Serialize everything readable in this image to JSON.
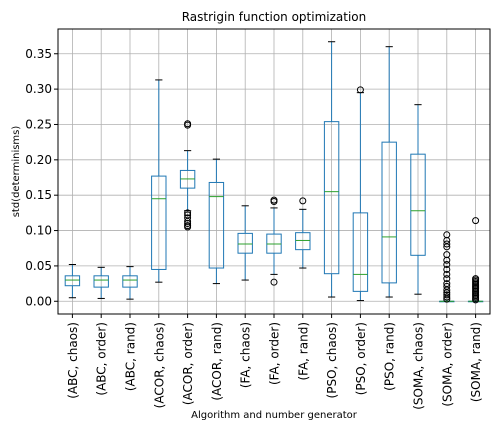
{
  "chart_data": {
    "type": "box",
    "title": "Rastrigin function optimization",
    "xlabel": "Algorithm and number generator",
    "ylabel": "std(determinisms)",
    "ylim": [
      -0.018,
      0.385
    ],
    "yticks": [
      0.0,
      0.05,
      0.1,
      0.15,
      0.2,
      0.25,
      0.3,
      0.35
    ],
    "ytick_labels": [
      "0.00",
      "0.05",
      "0.10",
      "0.15",
      "0.20",
      "0.25",
      "0.30",
      "0.35"
    ],
    "grid": true,
    "categories": [
      "(ABC, chaos)",
      "(ABC, order)",
      "(ABC, rand)",
      "(ACOR, chaos)",
      "(ACOR, order)",
      "(ACOR, rand)",
      "(FA, chaos)",
      "(FA, order)",
      "(FA, rand)",
      "(PSO, chaos)",
      "(PSO, order)",
      "(PSO, rand)",
      "(SOMA, chaos)",
      "(SOMA, order)",
      "(SOMA, rand)"
    ],
    "boxes": [
      {
        "whislo": 0.005,
        "q1": 0.022,
        "med": 0.03,
        "q3": 0.036,
        "whishi": 0.052,
        "fliers": []
      },
      {
        "whislo": 0.004,
        "q1": 0.02,
        "med": 0.03,
        "q3": 0.036,
        "whishi": 0.048,
        "fliers": []
      },
      {
        "whislo": 0.003,
        "q1": 0.02,
        "med": 0.03,
        "q3": 0.036,
        "whishi": 0.049,
        "fliers": []
      },
      {
        "whislo": 0.027,
        "q1": 0.045,
        "med": 0.145,
        "q3": 0.177,
        "whishi": 0.313,
        "fliers": []
      },
      {
        "whislo": 0.128,
        "q1": 0.16,
        "med": 0.173,
        "q3": 0.185,
        "whishi": 0.213,
        "fliers": [
          0.105,
          0.107,
          0.11,
          0.113,
          0.118,
          0.122,
          0.125,
          0.249,
          0.251
        ]
      },
      {
        "whislo": 0.025,
        "q1": 0.047,
        "med": 0.148,
        "q3": 0.168,
        "whishi": 0.201,
        "fliers": []
      },
      {
        "whislo": 0.03,
        "q1": 0.068,
        "med": 0.081,
        "q3": 0.096,
        "whishi": 0.135,
        "fliers": []
      },
      {
        "whislo": 0.038,
        "q1": 0.068,
        "med": 0.081,
        "q3": 0.095,
        "whishi": 0.132,
        "fliers": [
          0.027,
          0.141,
          0.143
        ]
      },
      {
        "whislo": 0.047,
        "q1": 0.073,
        "med": 0.086,
        "q3": 0.097,
        "whishi": 0.13,
        "fliers": [
          0.142
        ]
      },
      {
        "whislo": 0.006,
        "q1": 0.039,
        "med": 0.155,
        "q3": 0.254,
        "whishi": 0.367,
        "fliers": []
      },
      {
        "whislo": 0.001,
        "q1": 0.014,
        "med": 0.038,
        "q3": 0.125,
        "whishi": 0.295,
        "fliers": [
          0.299
        ]
      },
      {
        "whislo": 0.006,
        "q1": 0.026,
        "med": 0.091,
        "q3": 0.225,
        "whishi": 0.36,
        "fliers": []
      },
      {
        "whislo": 0.01,
        "q1": 0.065,
        "med": 0.128,
        "q3": 0.208,
        "whishi": 0.278,
        "fliers": []
      },
      {
        "whislo": 0.0,
        "q1": 0.0,
        "med": 0.0,
        "q3": 0.0,
        "whishi": 0.0,
        "fliers": [
          0.003,
          0.006,
          0.009,
          0.012,
          0.016,
          0.021,
          0.025,
          0.032,
          0.038,
          0.045,
          0.052,
          0.058,
          0.066,
          0.077,
          0.081,
          0.086,
          0.094
        ]
      },
      {
        "whislo": 0.0,
        "q1": 0.0,
        "med": 0.0,
        "q3": 0.0,
        "whishi": 0.0,
        "fliers": [
          0.002,
          0.004,
          0.006,
          0.008,
          0.01,
          0.012,
          0.014,
          0.016,
          0.018,
          0.02,
          0.022,
          0.024,
          0.026,
          0.028,
          0.03,
          0.032,
          0.114
        ]
      }
    ],
    "colors": {
      "box": "#1f77b4",
      "median": "#2ca02c",
      "cap": "#000000",
      "flier": "#000000",
      "grid": "#b0b0b0"
    }
  }
}
